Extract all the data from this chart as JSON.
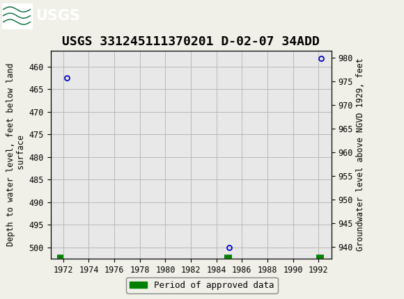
{
  "title": "USGS 331245111370201 D-02-07 34ADD",
  "ylabel_left": "Depth to water level, feet below land\n surface",
  "ylabel_right": "Groundwater level above NGVD 1929, feet",
  "xlim": [
    1971.0,
    1993.0
  ],
  "ylim_left": [
    502.5,
    456.5
  ],
  "ylim_right": [
    937.5,
    981.5
  ],
  "xticks": [
    1972,
    1974,
    1976,
    1978,
    1980,
    1982,
    1984,
    1986,
    1988,
    1990,
    1992
  ],
  "yticks_left": [
    460,
    465,
    470,
    475,
    480,
    485,
    490,
    495,
    500
  ],
  "yticks_right": [
    940,
    945,
    950,
    955,
    960,
    965,
    970,
    975,
    980
  ],
  "data_points": [
    {
      "year": 1972.3,
      "depth": 462.5
    },
    {
      "year": 1985.0,
      "depth": 500.0
    },
    {
      "year": 1992.2,
      "depth": 458.2
    }
  ],
  "approved_segments": [
    {
      "x_start": 1971.5,
      "x_end": 1972.0
    },
    {
      "x_start": 1984.6,
      "x_end": 1985.2
    },
    {
      "x_start": 1991.8,
      "x_end": 1992.4
    }
  ],
  "approved_y": 502.0,
  "point_color": "#0000cc",
  "approved_color": "#008000",
  "fig_bg_color": "#f0f0e8",
  "plot_bg_color": "#e8e8e8",
  "header_color": "#006633",
  "grid_color": "#b8b8b8",
  "title_fontsize": 13,
  "axis_label_fontsize": 8.5,
  "tick_fontsize": 8.5,
  "legend_fontsize": 9
}
